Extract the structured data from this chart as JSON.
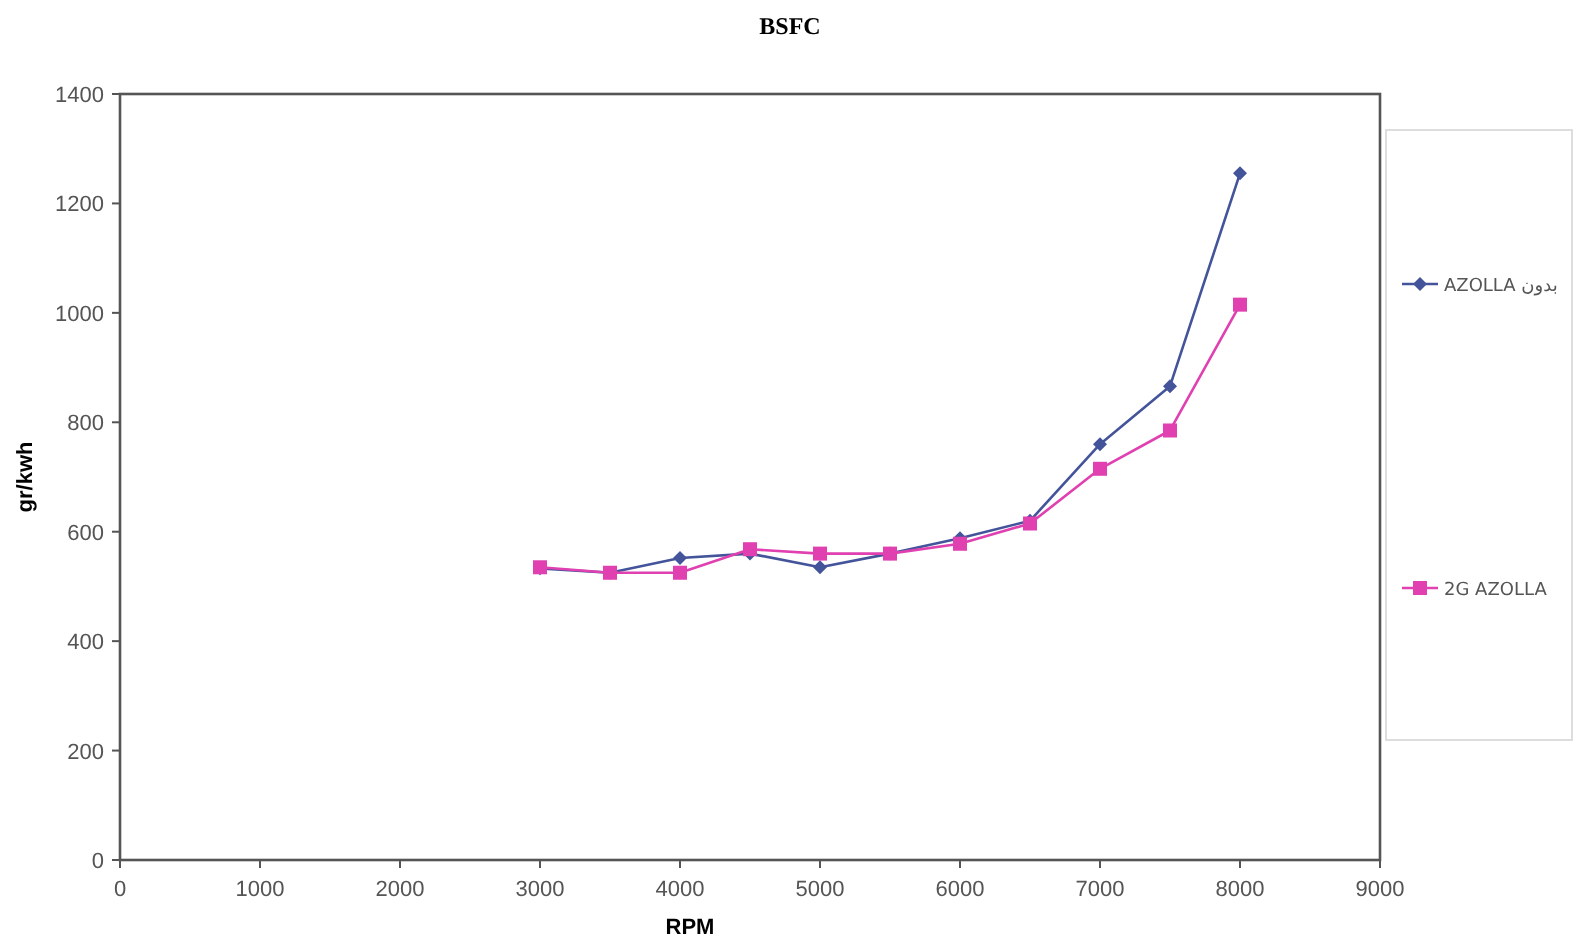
{
  "chart_data": {
    "type": "line",
    "title": "BSFC",
    "xlabel": "RPM",
    "ylabel": "gr/kwh",
    "x": [
      3000,
      3500,
      4000,
      4500,
      5000,
      5500,
      6000,
      6500,
      7000,
      7500,
      8000
    ],
    "series": [
      {
        "name": "AZOLLA بدون",
        "color": "#44549a",
        "marker": "diamond",
        "values": [
          533,
          525,
          552,
          560,
          535,
          560,
          588,
          620,
          760,
          866,
          1255
        ]
      },
      {
        "name": "2G AZOLLA",
        "color": "#e040b0",
        "marker": "square",
        "values": [
          535,
          525,
          525,
          568,
          560,
          560,
          578,
          615,
          715,
          785,
          1015
        ]
      }
    ],
    "xlim": [
      0,
      9000
    ],
    "xticks": [
      0,
      1000,
      2000,
      3000,
      4000,
      5000,
      6000,
      7000,
      8000,
      9000
    ],
    "ylim": [
      0,
      1400
    ],
    "yticks": [
      0,
      200,
      400,
      600,
      800,
      1000,
      1200,
      1400
    ],
    "grid": false,
    "legend": "right",
    "line_style": "solid"
  }
}
